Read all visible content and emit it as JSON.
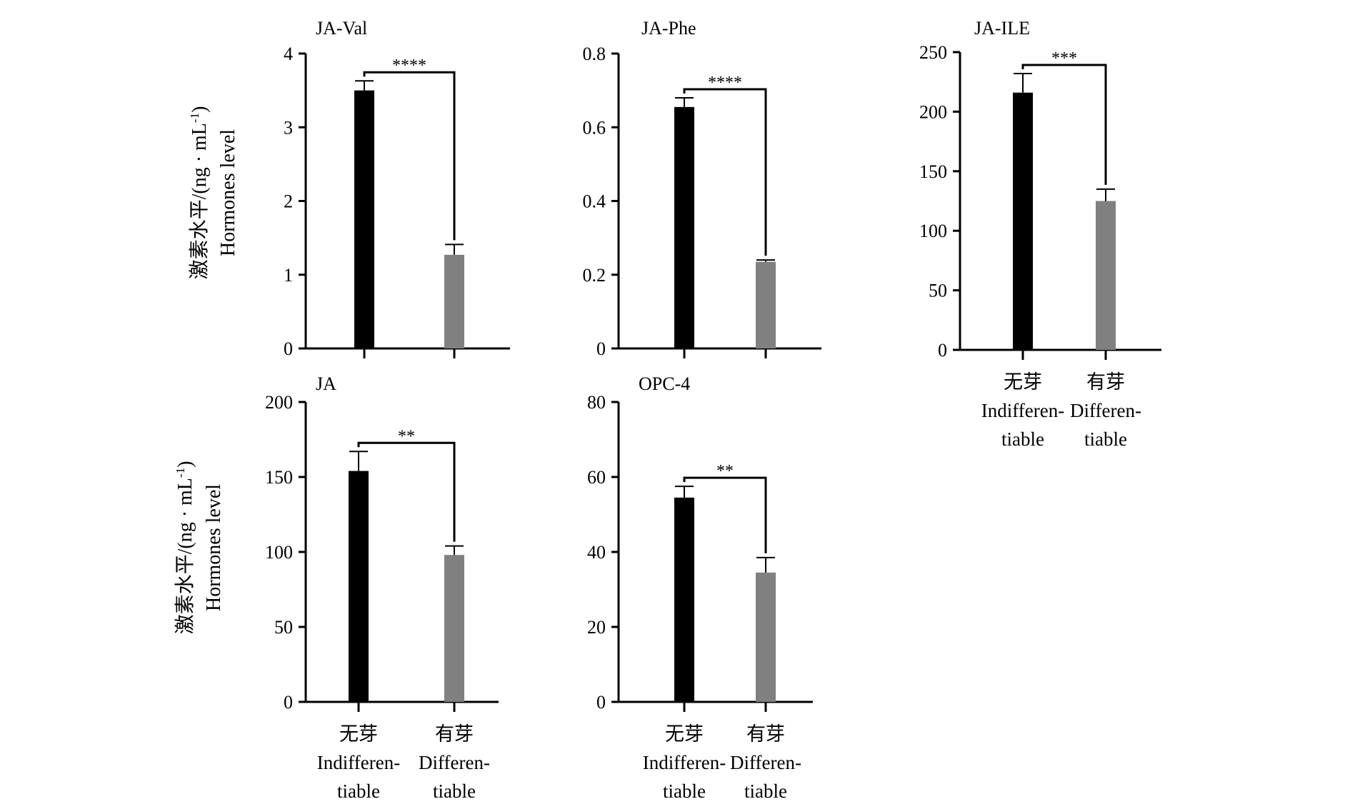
{
  "figure": {
    "y_label_zh": "激素水平/(ng · mL",
    "y_label_sup": "-1",
    "y_label_close": ")",
    "y_label_en": "Hormones level",
    "categories": [
      [
        "无芽",
        "Indifferen-",
        "tiable"
      ],
      [
        "有芽",
        "Differen-",
        "tiable"
      ]
    ],
    "colors": {
      "series_1": "#000000",
      "series_2": "#808080",
      "axis": "#000000"
    }
  },
  "chart_data": [
    {
      "type": "bar",
      "title": "JA-Val",
      "categories": [
        "无芽 Indifferentiable",
        "有芽 Differentiable"
      ],
      "values": [
        3.5,
        1.27
      ],
      "errors": [
        0.13,
        0.14
      ],
      "ylim": [
        0,
        4
      ],
      "yticks": [
        "0",
        "1",
        "2",
        "3",
        "4"
      ],
      "significance": "****"
    },
    {
      "type": "bar",
      "title": "JA-Phe",
      "categories": [
        "无芽 Indifferentiable",
        "有芽 Differentiable"
      ],
      "values": [
        0.655,
        0.235
      ],
      "errors": [
        0.025,
        0.005
      ],
      "ylim": [
        0,
        0.8
      ],
      "yticks": [
        "0",
        "0.2",
        "0.4",
        "0.6",
        "0.8"
      ],
      "significance": "****"
    },
    {
      "type": "bar",
      "title": "JA-ILE",
      "categories": [
        "无芽 Indifferentiable",
        "有芽 Differentiable"
      ],
      "values": [
        216,
        125
      ],
      "errors": [
        16,
        10
      ],
      "ylim": [
        0,
        250
      ],
      "yticks": [
        "0",
        "50",
        "100",
        "150",
        "200",
        "250"
      ],
      "significance": "***"
    },
    {
      "type": "bar",
      "title": "JA",
      "categories": [
        "无芽 Indifferentiable",
        "有芽 Differentiable"
      ],
      "values": [
        154,
        98
      ],
      "errors": [
        13,
        6
      ],
      "ylim": [
        0,
        200
      ],
      "yticks": [
        "0",
        "50",
        "100",
        "150",
        "200"
      ],
      "significance": "**"
    },
    {
      "type": "bar",
      "title": "OPC-4",
      "categories": [
        "无芽 Indifferentiable",
        "有芽 Differentiable"
      ],
      "values": [
        54.5,
        34.5
      ],
      "errors": [
        3,
        4
      ],
      "ylim": [
        0,
        80
      ],
      "yticks": [
        "0",
        "20",
        "40",
        "60",
        "80"
      ],
      "significance": "**"
    }
  ]
}
